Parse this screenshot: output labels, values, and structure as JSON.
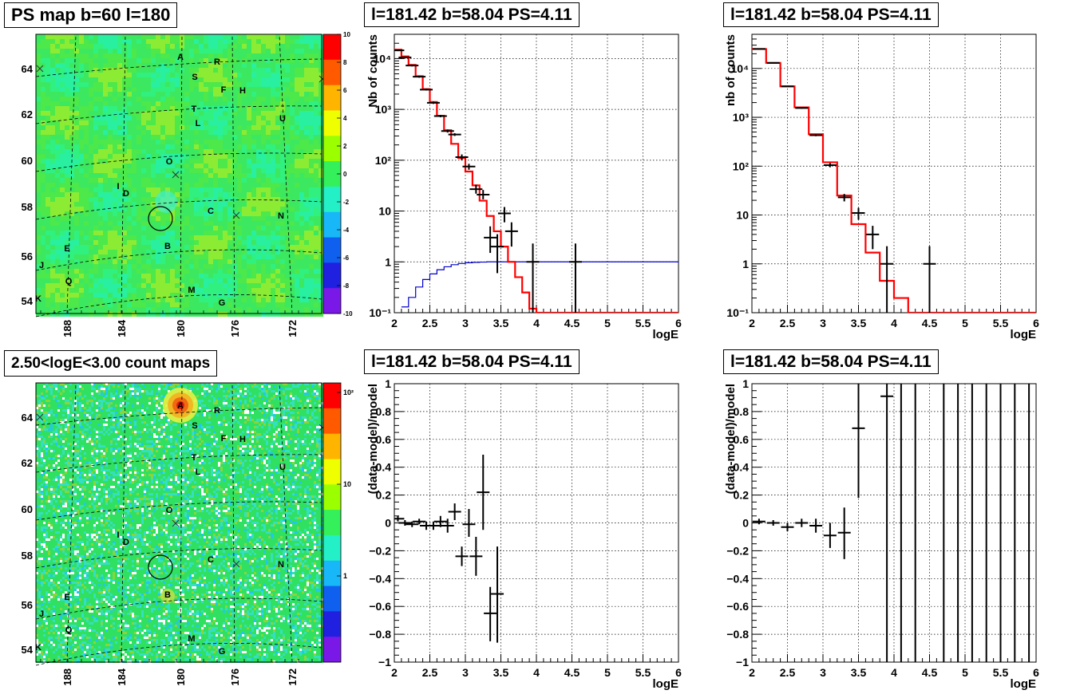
{
  "titles": {
    "ps_map": "PS map b=60 l=180",
    "count_map": "2.50<logE<3.00 count maps",
    "spec_left": "l=181.42 b=58.04 PS=4.11",
    "spec_right": "l=181.42 b=58.04 PS=4.11",
    "res_left": "l=181.42 b=58.04 PS=4.11",
    "res_right": "l=181.42 b=58.04 PS=4.11"
  },
  "maps": {
    "lat_ticks": [
      "64",
      "62",
      "60",
      "58",
      "56",
      "54"
    ],
    "lon_ticks": [
      "188",
      "184",
      "180",
      "176",
      "172"
    ],
    "ps_palette": [
      "10",
      "8",
      "6",
      "4",
      "2",
      "0",
      "-2",
      "-4",
      "-6",
      "-8",
      "-10"
    ],
    "count_palette": [
      "10²",
      "10",
      "1"
    ],
    "sources": [
      {
        "label": "A"
      },
      {
        "label": "R"
      },
      {
        "label": "S"
      },
      {
        "label": "F"
      },
      {
        "label": "H"
      },
      {
        "label": "T"
      },
      {
        "label": "L"
      },
      {
        "label": "U"
      },
      {
        "label": "O"
      },
      {
        "label": "I"
      },
      {
        "label": "D"
      },
      {
        "label": "C"
      },
      {
        "label": "N"
      },
      {
        "label": "B"
      },
      {
        "label": "E"
      },
      {
        "label": "J"
      },
      {
        "label": "Q"
      },
      {
        "label": "M"
      },
      {
        "label": "G"
      },
      {
        "label": "K"
      }
    ]
  },
  "colors": {
    "model": "#ff0000",
    "acceptance": "#0000cc",
    "data": "#000000"
  },
  "chart_data": [
    {
      "type": "line",
      "id": "spec_left",
      "xlabel": "logE",
      "ylabel": "Nb of counts",
      "log_y": true,
      "xlim": [
        2,
        6
      ],
      "ylim": [
        0.1,
        30000
      ],
      "x_ticks": [
        "2",
        "2.5",
        "3",
        "3.5",
        "4",
        "4.5",
        "5",
        "5.5",
        "6"
      ],
      "y_ticks": [
        "10⁴",
        "10³",
        "10²",
        "10",
        "1",
        "10⁻¹"
      ],
      "model_step": {
        "edges": [
          2.0,
          2.1,
          2.2,
          2.3,
          2.4,
          2.5,
          2.6,
          2.7,
          2.8,
          2.9,
          3.0,
          3.1,
          3.2,
          3.3,
          3.4,
          3.5,
          3.6,
          3.7,
          3.8,
          3.9,
          4.0,
          4.1,
          6.0
        ],
        "values": [
          15000,
          11000,
          7500,
          4500,
          2500,
          1400,
          750,
          390,
          210,
          110,
          60,
          32,
          16,
          8,
          4,
          2,
          1,
          0.5,
          0.25,
          0.12,
          0.1,
          0.1
        ]
      },
      "acceptance_step": {
        "edges": [
          2.1,
          2.2,
          2.3,
          2.4,
          2.5,
          2.6,
          2.7,
          2.8,
          2.9,
          3.0,
          3.1,
          3.2,
          3.3,
          3.4,
          6.0
        ],
        "values": [
          0.13,
          0.2,
          0.32,
          0.45,
          0.58,
          0.7,
          0.8,
          0.88,
          0.93,
          0.96,
          0.98,
          0.99,
          1.0,
          1.0
        ]
      },
      "points": [
        {
          "x": 2.05,
          "y": 14500,
          "lo": 14000,
          "hi": 15000
        },
        {
          "x": 2.15,
          "y": 10500,
          "lo": 10100,
          "hi": 10900
        },
        {
          "x": 2.25,
          "y": 7300,
          "lo": 7000,
          "hi": 7600
        },
        {
          "x": 2.35,
          "y": 4400,
          "lo": 4200,
          "hi": 4600
        },
        {
          "x": 2.45,
          "y": 2450,
          "lo": 2350,
          "hi": 2550
        },
        {
          "x": 2.55,
          "y": 1350,
          "lo": 1280,
          "hi": 1420
        },
        {
          "x": 2.65,
          "y": 740,
          "lo": 700,
          "hi": 780
        },
        {
          "x": 2.75,
          "y": 375,
          "lo": 350,
          "hi": 400
        },
        {
          "x": 2.85,
          "y": 320,
          "lo": 300,
          "hi": 340
        },
        {
          "x": 2.95,
          "y": 115,
          "lo": 100,
          "hi": 130
        },
        {
          "x": 3.05,
          "y": 75,
          "lo": 65,
          "hi": 85
        },
        {
          "x": 3.15,
          "y": 27,
          "lo": 22,
          "hi": 33
        },
        {
          "x": 3.25,
          "y": 21,
          "lo": 17,
          "hi": 26
        },
        {
          "x": 3.35,
          "y": 3,
          "lo": 1.5,
          "hi": 5
        },
        {
          "x": 3.45,
          "y": 2,
          "lo": 0.6,
          "hi": 3.5
        },
        {
          "x": 3.55,
          "y": 9,
          "lo": 6,
          "hi": 12
        },
        {
          "x": 3.65,
          "y": 4,
          "lo": 2,
          "hi": 6
        },
        {
          "x": 3.95,
          "y": 1,
          "lo": 0.1,
          "hi": 2.3
        },
        {
          "x": 4.55,
          "y": 1,
          "lo": 0.1,
          "hi": 2.3
        }
      ]
    },
    {
      "type": "line",
      "id": "spec_right",
      "xlabel": "logE",
      "ylabel": "nb of counts",
      "log_y": true,
      "xlim": [
        2,
        6
      ],
      "ylim": [
        0.1,
        50000
      ],
      "x_ticks": [
        "2",
        "2.5",
        "3",
        "3.5",
        "4",
        "4.5",
        "5",
        "5.5",
        "6"
      ],
      "y_ticks": [
        "10⁴",
        "10³",
        "10²",
        "10",
        "1",
        "10⁻¹"
      ],
      "model_step": {
        "edges": [
          2.0,
          2.2,
          2.4,
          2.6,
          2.8,
          3.0,
          3.2,
          3.4,
          3.6,
          3.8,
          4.0,
          4.2,
          6.0
        ],
        "values": [
          25000,
          13000,
          4300,
          1600,
          450,
          120,
          25,
          6.5,
          1.7,
          0.45,
          0.2,
          0.1
        ]
      },
      "points": [
        {
          "x": 2.1,
          "y": 25000,
          "lo": 24700,
          "hi": 25300
        },
        {
          "x": 2.3,
          "y": 13000,
          "lo": 12800,
          "hi": 13200
        },
        {
          "x": 2.5,
          "y": 4300,
          "lo": 4200,
          "hi": 4400
        },
        {
          "x": 2.7,
          "y": 1550,
          "lo": 1500,
          "hi": 1600
        },
        {
          "x": 2.9,
          "y": 430,
          "lo": 410,
          "hi": 450
        },
        {
          "x": 3.1,
          "y": 105,
          "lo": 95,
          "hi": 115
        },
        {
          "x": 3.3,
          "y": 23,
          "lo": 19,
          "hi": 27
        },
        {
          "x": 3.5,
          "y": 11,
          "lo": 8,
          "hi": 14
        },
        {
          "x": 3.7,
          "y": 4,
          "lo": 2,
          "hi": 6
        },
        {
          "x": 3.9,
          "y": 1,
          "lo": 0.1,
          "hi": 2.3
        },
        {
          "x": 4.5,
          "y": 1,
          "lo": 0.1,
          "hi": 2.3
        }
      ]
    },
    {
      "type": "scatter",
      "id": "res_left",
      "xlabel": "logE",
      "ylabel": "(data-model)/model",
      "xlim": [
        2,
        6
      ],
      "ylim": [
        -1,
        1
      ],
      "x_ticks": [
        "2",
        "2.5",
        "3",
        "3.5",
        "4",
        "4.5",
        "5",
        "5.5",
        "6"
      ],
      "y_ticks": [
        "1",
        "0.8",
        "0.6",
        "0.4",
        "0.2",
        "0",
        "−0.2",
        "−0.4",
        "−0.6",
        "−0.8",
        "−1"
      ],
      "points": [
        {
          "x": 2.05,
          "y": 0.03,
          "lo": 0.01,
          "hi": 0.05
        },
        {
          "x": 2.15,
          "y": 0.0,
          "lo": -0.02,
          "hi": 0.02
        },
        {
          "x": 2.25,
          "y": -0.01,
          "lo": -0.03,
          "hi": 0.01
        },
        {
          "x": 2.35,
          "y": 0.01,
          "lo": -0.01,
          "hi": 0.03
        },
        {
          "x": 2.45,
          "y": -0.02,
          "lo": -0.05,
          "hi": 0.01
        },
        {
          "x": 2.55,
          "y": -0.02,
          "lo": -0.05,
          "hi": 0.01
        },
        {
          "x": 2.65,
          "y": 0.01,
          "lo": -0.03,
          "hi": 0.05
        },
        {
          "x": 2.75,
          "y": -0.02,
          "lo": -0.07,
          "hi": 0.03
        },
        {
          "x": 2.85,
          "y": 0.08,
          "lo": 0.02,
          "hi": 0.14
        },
        {
          "x": 2.95,
          "y": -0.24,
          "lo": -0.31,
          "hi": -0.17
        },
        {
          "x": 3.05,
          "y": -0.01,
          "lo": -0.1,
          "hi": 0.1
        },
        {
          "x": 3.15,
          "y": -0.24,
          "lo": -0.38,
          "hi": -0.1
        },
        {
          "x": 3.25,
          "y": 0.22,
          "lo": -0.05,
          "hi": 0.49
        },
        {
          "x": 3.35,
          "y": -0.65,
          "lo": -0.85,
          "hi": -0.46
        },
        {
          "x": 3.45,
          "y": -0.51,
          "lo": -0.86,
          "hi": -0.17
        }
      ]
    },
    {
      "type": "scatter",
      "id": "res_right",
      "xlabel": "logE",
      "ylabel": "(data-model)/model",
      "xlim": [
        2,
        6
      ],
      "ylim": [
        -1,
        1
      ],
      "x_ticks": [
        "2",
        "2.5",
        "3",
        "3.5",
        "4",
        "4.5",
        "5",
        "5.5",
        "6"
      ],
      "y_ticks": [
        "1",
        "0.8",
        "0.6",
        "0.4",
        "0.2",
        "0",
        "−0.2",
        "−0.4",
        "−0.6",
        "−0.8",
        "−1"
      ],
      "points": [
        {
          "x": 2.1,
          "y": 0.01,
          "lo": -0.01,
          "hi": 0.03
        },
        {
          "x": 2.3,
          "y": 0.0,
          "lo": -0.02,
          "hi": 0.02
        },
        {
          "x": 2.5,
          "y": -0.03,
          "lo": -0.06,
          "hi": 0.0
        },
        {
          "x": 2.7,
          "y": 0.0,
          "lo": -0.03,
          "hi": 0.03
        },
        {
          "x": 2.9,
          "y": -0.02,
          "lo": -0.07,
          "hi": 0.03
        },
        {
          "x": 3.1,
          "y": -0.09,
          "lo": -0.18,
          "hi": 0.0
        },
        {
          "x": 3.3,
          "y": -0.07,
          "lo": -0.26,
          "hi": 0.11
        },
        {
          "x": 3.5,
          "y": 0.68,
          "lo": 0.18,
          "hi": 1.0
        },
        {
          "x": 3.9,
          "y": 0.91,
          "lo": -1.0,
          "hi": 1.0
        },
        {
          "x": 4.1,
          "y": null,
          "lo": -1.0,
          "hi": 1.0
        },
        {
          "x": 4.3,
          "y": null,
          "lo": -1.0,
          "hi": 1.0
        },
        {
          "x": 4.7,
          "y": null,
          "lo": -1.0,
          "hi": 1.0
        },
        {
          "x": 4.9,
          "y": null,
          "lo": -1.0,
          "hi": 1.0
        },
        {
          "x": 5.1,
          "y": null,
          "lo": -1.0,
          "hi": 1.0
        },
        {
          "x": 5.3,
          "y": null,
          "lo": -1.0,
          "hi": 1.0
        },
        {
          "x": 5.5,
          "y": null,
          "lo": -1.0,
          "hi": 1.0
        },
        {
          "x": 5.7,
          "y": null,
          "lo": -1.0,
          "hi": 1.0
        },
        {
          "x": 5.9,
          "y": null,
          "lo": -1.0,
          "hi": 1.0
        }
      ]
    }
  ]
}
